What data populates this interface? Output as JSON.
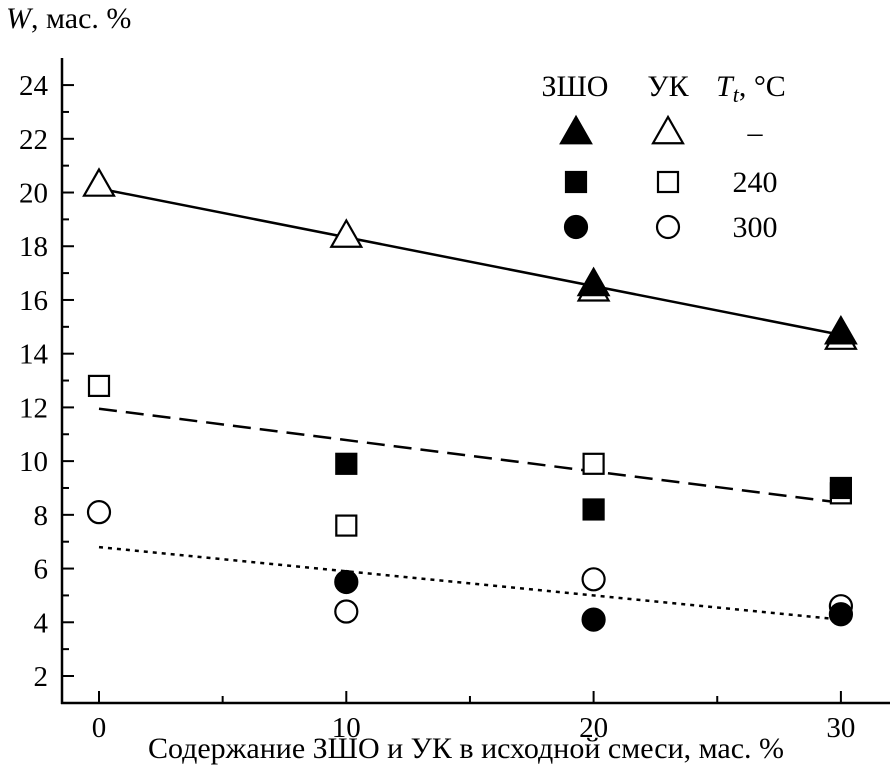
{
  "chart_data": {
    "type": "scatter",
    "ylabel_italic": "W",
    "ylabel_rest": ", мас. %",
    "xlabel": "Содержание ЗШО и УК в исходной смеси, мас. %",
    "xlim": [
      -3,
      32
    ],
    "ylim": [
      2,
      25
    ],
    "xticks": [
      0,
      10,
      20,
      30
    ],
    "xminor": [
      5,
      15,
      25
    ],
    "yticks": [
      2,
      4,
      6,
      8,
      10,
      12,
      14,
      16,
      18,
      20,
      22,
      24
    ],
    "grid": false,
    "legend": {
      "placement": "top-right",
      "headers": [
        "ЗШО",
        "УК"
      ],
      "temp_header_italic": "T",
      "temp_header_sub": "t",
      "temp_header_rest": ", °C",
      "rows": [
        {
          "marker": "triangle",
          "temp": "–"
        },
        {
          "marker": "square",
          "temp": "240"
        },
        {
          "marker": "circle",
          "temp": "300"
        }
      ]
    },
    "series": [
      {
        "marker": "triangle",
        "filled": false,
        "x": [
          0,
          10,
          20,
          30
        ],
        "y": [
          20.3,
          18.4,
          16.4,
          14.6
        ]
      },
      {
        "marker": "triangle",
        "filled": true,
        "x": [
          20,
          30
        ],
        "y": [
          16.6,
          14.8
        ]
      },
      {
        "marker": "square",
        "filled": false,
        "x": [
          0,
          10,
          20,
          30
        ],
        "y": [
          12.8,
          7.6,
          9.9,
          8.8
        ]
      },
      {
        "marker": "square",
        "filled": true,
        "x": [
          10,
          20,
          30
        ],
        "y": [
          9.9,
          8.2,
          9.0
        ]
      },
      {
        "marker": "circle",
        "filled": false,
        "x": [
          0,
          10,
          20,
          30
        ],
        "y": [
          8.1,
          4.4,
          5.6,
          4.6
        ]
      },
      {
        "marker": "circle",
        "filled": true,
        "x": [
          10,
          20,
          30
        ],
        "y": [
          5.5,
          4.1,
          4.3
        ]
      }
    ],
    "fit_lines": [
      {
        "style": "solid",
        "x": [
          0,
          30
        ],
        "y": [
          20.15,
          14.7
        ]
      },
      {
        "style": "dashed",
        "x": [
          0,
          30
        ],
        "y": [
          11.95,
          8.45
        ]
      },
      {
        "style": "dotted",
        "x": [
          0,
          30
        ],
        "y": [
          6.8,
          4.1
        ]
      }
    ]
  }
}
